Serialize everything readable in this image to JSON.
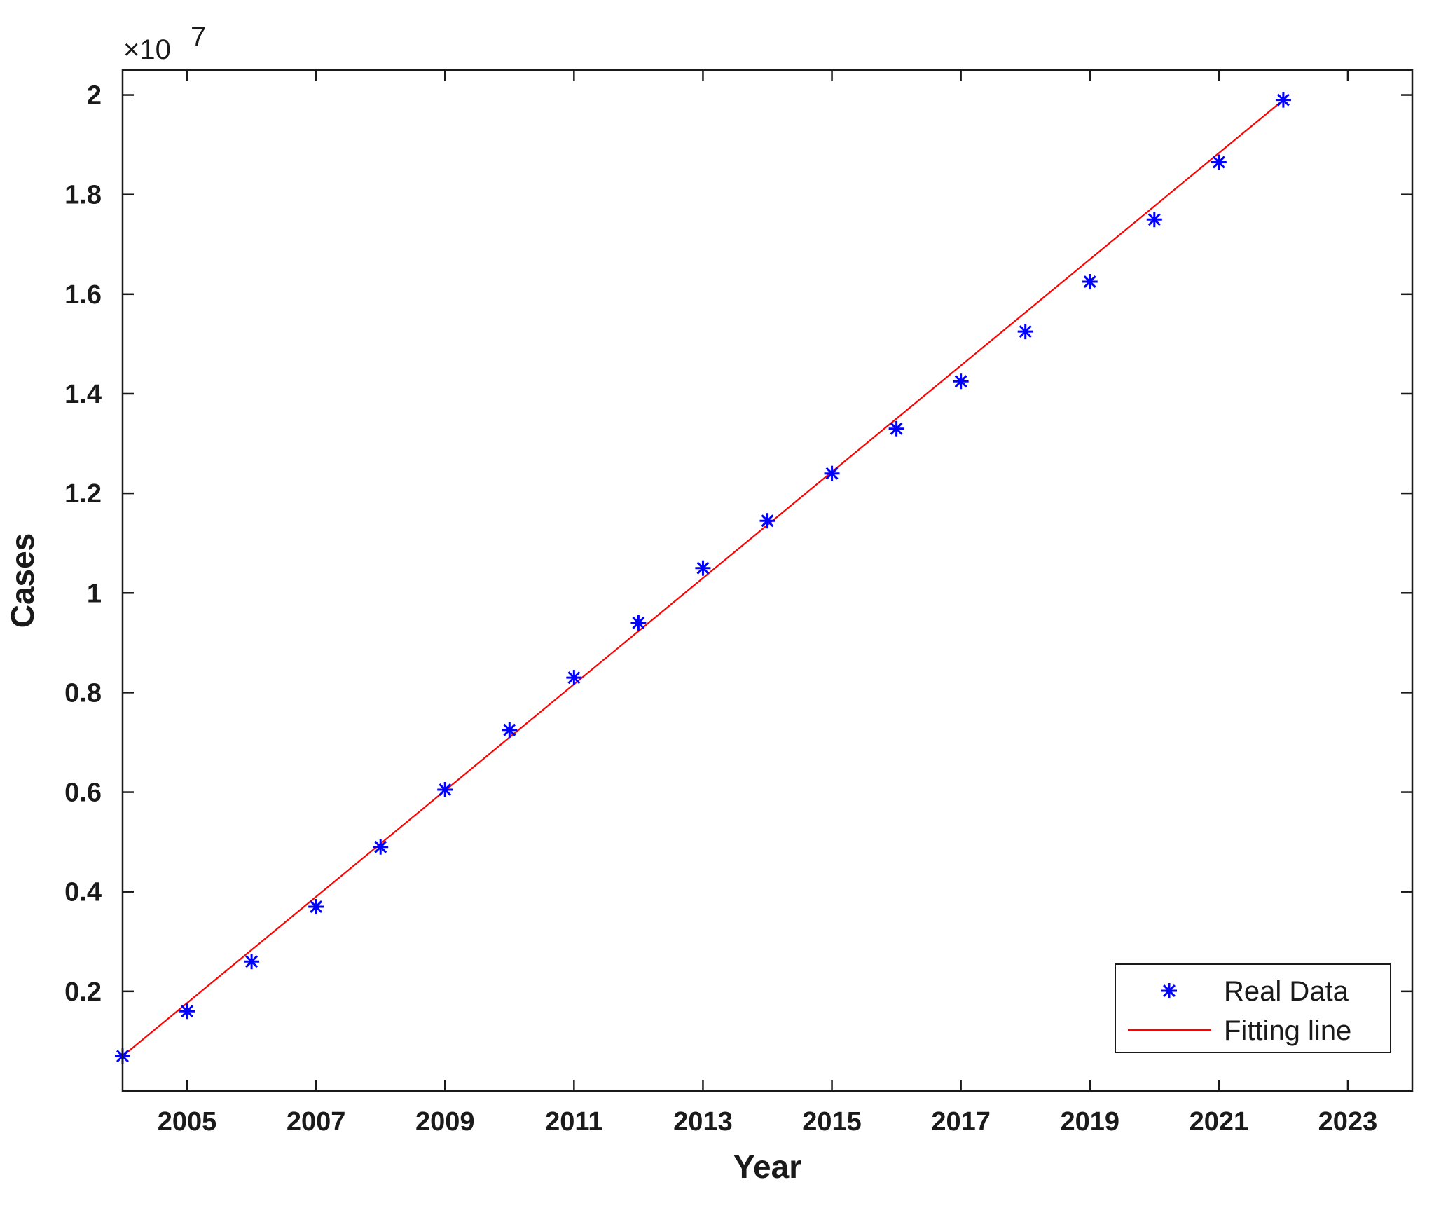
{
  "chart_data": {
    "type": "scatter",
    "xlabel": "Year",
    "ylabel": "Cases",
    "y_multiplier_label": "×10",
    "y_multiplier_exponent": "7",
    "y_multiplier": 10000000,
    "xlim": [
      2004,
      2024
    ],
    "ylim": [
      0,
      2.05
    ],
    "x_ticks": [
      2005,
      2007,
      2009,
      2011,
      2013,
      2015,
      2017,
      2019,
      2021,
      2023
    ],
    "x_tick_labels": [
      "2005",
      "2007",
      "2009",
      "2011",
      "2013",
      "2015",
      "2017",
      "2019",
      "2021",
      "2023"
    ],
    "y_ticks": [
      0.2,
      0.4,
      0.6,
      0.8,
      1.0,
      1.2,
      1.4,
      1.6,
      1.8,
      2.0
    ],
    "y_tick_labels": [
      "0.2",
      "0.4",
      "0.6",
      "0.8",
      "1",
      "1.2",
      "1.4",
      "1.6",
      "1.8",
      "2"
    ],
    "grid": false,
    "legend_position": "bottom-right",
    "series": [
      {
        "name": "Real Data",
        "kind": "scatter",
        "marker": "asterisk",
        "color": "#0000ff",
        "x": [
          2004,
          2005,
          2006,
          2007,
          2008,
          2009,
          2010,
          2011,
          2012,
          2013,
          2014,
          2015,
          2016,
          2017,
          2018,
          2019,
          2020,
          2021,
          2022
        ],
        "y": [
          0.07,
          0.16,
          0.26,
          0.37,
          0.49,
          0.605,
          0.725,
          0.83,
          0.94,
          1.05,
          1.145,
          1.24,
          1.33,
          1.425,
          1.525,
          1.625,
          1.75,
          1.865,
          1.99
        ]
      },
      {
        "name": "Fitting line",
        "kind": "line",
        "color": "#ff0000",
        "x": [
          2004,
          2022
        ],
        "y": [
          0.07,
          1.99
        ]
      }
    ]
  }
}
